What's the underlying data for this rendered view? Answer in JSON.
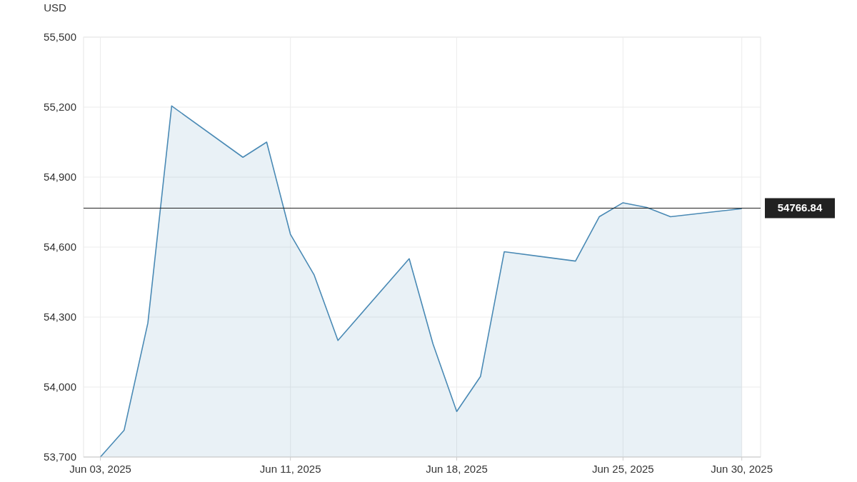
{
  "chart_data": {
    "type": "area",
    "ylabel": "USD",
    "x": [
      "2025-06-03",
      "2025-06-04",
      "2025-06-05",
      "2025-06-06",
      "2025-06-09",
      "2025-06-10",
      "2025-06-11",
      "2025-06-12",
      "2025-06-13",
      "2025-06-16",
      "2025-06-17",
      "2025-06-18",
      "2025-06-19",
      "2025-06-20",
      "2025-06-23",
      "2025-06-24",
      "2025-06-25",
      "2025-06-26",
      "2025-06-27",
      "2025-06-30"
    ],
    "series": [
      {
        "color": "#4a8ab5",
        "values": [
          53700,
          53815,
          54275,
          55205,
          54985,
          55050,
          54655,
          54480,
          54200,
          54550,
          54185,
          53895,
          54045,
          54580,
          54540,
          54730,
          54790,
          54770,
          54730,
          54765
        ]
      }
    ],
    "xlim": [
      "2025-06-02T07:00",
      "2025-06-30T19:00"
    ],
    "xticks": [
      {
        "value": "2025-06-03",
        "label": "Jun 03, 2025"
      },
      {
        "value": "2025-06-11",
        "label": "Jun 11, 2025"
      },
      {
        "value": "2025-06-18",
        "label": "Jun 18, 2025"
      },
      {
        "value": "2025-06-25",
        "label": "Jun 25, 2025"
      },
      {
        "value": "2025-06-30",
        "label": "Jun 30, 2025"
      }
    ],
    "ylim": [
      53700,
      55500
    ],
    "yticks": [
      {
        "value": 53700,
        "label": "53,700"
      },
      {
        "value": 54000,
        "label": "54,000"
      },
      {
        "value": 54300,
        "label": "54,300"
      },
      {
        "value": 54600,
        "label": "54,600"
      },
      {
        "value": 54900,
        "label": "54,900"
      },
      {
        "value": 55200,
        "label": "55,200"
      },
      {
        "value": 55500,
        "label": "55,500"
      }
    ],
    "ref_lines": [
      {
        "axis": "y",
        "value": 54766.84,
        "label": "54766.84",
        "color": "#222222"
      }
    ],
    "grid": true,
    "marker": "none"
  }
}
